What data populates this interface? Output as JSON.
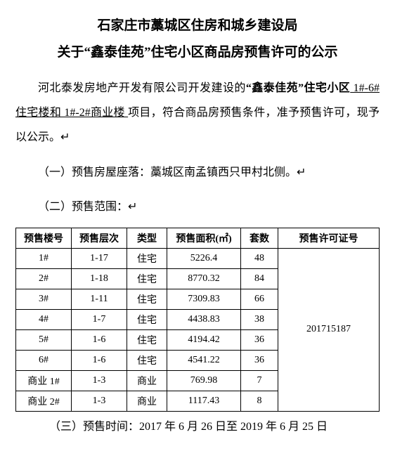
{
  "header": {
    "line1": "石家庄市藁城区住房和城乡建设局",
    "line2_prefix": "关于",
    "line2_quote_open": "“",
    "line2_name": "鑫泰佳苑",
    "line2_quote_close": "”",
    "line2_suffix": "住宅小区商品房预售许可的公示"
  },
  "body": {
    "p1_a": "河北泰发房地产开发有限公司开发建设的",
    "p1_name": "“鑫泰佳苑”住宅小区",
    "p1_ul1": " 1#-6#住宅楼和 1#-2#商业楼 ",
    "p1_b": "项目，符合商品房预售条件，准予预售许可，现予以公示。",
    "item1": "（一）预售房屋座落：藁城区南孟镇西只甲村北侧。",
    "item2": "（二）预售范围：",
    "item3": "（三）预售时间：2017 年 6 月 26 日至 2019 年 6 月 25 日"
  },
  "table": {
    "headers": {
      "building": "预售楼号",
      "floors": "预售层次",
      "type": "类型",
      "area": "预售面积(㎡)",
      "units": "套数",
      "permit": "预售许可证号"
    },
    "permit_no": "201715187",
    "rows": [
      {
        "building": "1#",
        "floors": "1-17",
        "type": "住宅",
        "area": "5226.4",
        "units": "48"
      },
      {
        "building": "2#",
        "floors": "1-18",
        "type": "住宅",
        "area": "8770.32",
        "units": "84"
      },
      {
        "building": "3#",
        "floors": "1-11",
        "type": "住宅",
        "area": "7309.83",
        "units": "66"
      },
      {
        "building": "4#",
        "floors": "1-7",
        "type": "住宅",
        "area": "4438.83",
        "units": "38"
      },
      {
        "building": "5#",
        "floors": "1-6",
        "type": "住宅",
        "area": "4194.42",
        "units": "36"
      },
      {
        "building": "6#",
        "floors": "1-6",
        "type": "住宅",
        "area": "4541.22",
        "units": "36"
      },
      {
        "building": "商业 1#",
        "floors": "1-3",
        "type": "商业",
        "area": "769.98",
        "units": "7"
      },
      {
        "building": "商业 2#",
        "floors": "1-3",
        "type": "商业",
        "area": "1117.43",
        "units": "8"
      }
    ]
  },
  "marker": "↵"
}
